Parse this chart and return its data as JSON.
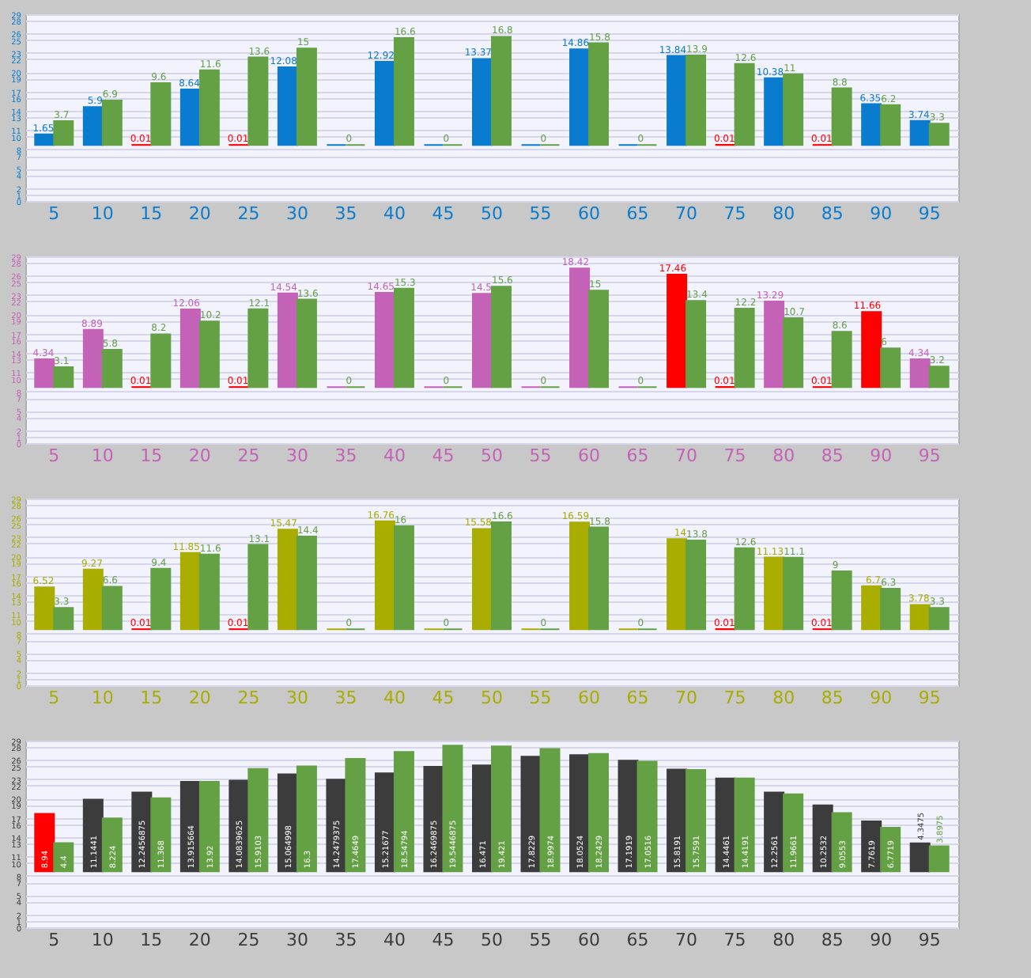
{
  "chart_data": [
    {
      "type": "bar",
      "categories": [
        "5",
        "10",
        "15",
        "20",
        "25",
        "30",
        "35",
        "40",
        "45",
        "50",
        "55",
        "60",
        "65",
        "70",
        "75",
        "80",
        "85",
        "90",
        "95"
      ],
      "grid": "y",
      "ylim": [
        0,
        29
      ],
      "yticks": [
        0,
        1,
        2,
        4,
        5,
        7,
        8,
        10,
        11,
        13,
        14,
        16,
        17,
        19,
        20,
        22,
        23,
        25,
        26,
        28,
        29
      ],
      "series": [
        {
          "color": "#0a7ccf",
          "base": [
            8.7,
            8.7,
            8.7,
            8.7,
            8.7,
            8.7,
            8.7,
            8.7,
            8.7,
            8.7,
            8.7,
            8.7,
            8.7,
            8.7,
            8.7,
            8.7,
            8.7,
            8.7,
            8.7
          ],
          "values": [
            1.65,
            5.9,
            0.01,
            8.64,
            0.01,
            12.08,
            0,
            12.92,
            0,
            13.37,
            0,
            14.86,
            0,
            13.84,
            0.01,
            10.38,
            0.01,
            6.35,
            3.74
          ],
          "colors": [
            "#0a7ccf",
            "#0a7ccf",
            "#ff0000",
            "#0a7ccf",
            "#ff0000",
            "#0a7ccf",
            "#0a7ccf",
            "#0a7ccf",
            "#0a7ccf",
            "#0a7ccf",
            "#0a7ccf",
            "#0a7ccf",
            "#0a7ccf",
            "#0a7ccf",
            "#ff0000",
            "#0a7ccf",
            "#ff0000",
            "#0a7ccf",
            "#0a7ccf"
          ],
          "value_labels": [
            "1.65",
            "5.9",
            "0.01",
            "8.64",
            "0.01",
            "12.08",
            null,
            "12.92",
            null,
            "13.37",
            null,
            "14.86",
            null,
            "13.84",
            "0.01",
            "10.38",
            "0.01",
            "6.35",
            "3.74"
          ]
        },
        {
          "color": "#64a044",
          "base": [
            8.7,
            8.7,
            8.7,
            8.7,
            8.7,
            8.7,
            8.7,
            8.7,
            8.7,
            8.7,
            8.7,
            8.7,
            8.7,
            8.7,
            8.7,
            8.7,
            8.7,
            8.7,
            8.7
          ],
          "values": [
            3.7,
            6.9,
            9.6,
            11.6,
            13.6,
            15,
            0,
            16.6,
            0,
            16.8,
            0,
            15.8,
            0,
            13.9,
            12.6,
            11,
            8.8,
            6.2,
            3.3
          ],
          "value_labels": [
            "3.7",
            "6.9",
            "9.6",
            "11.6",
            "13.6",
            "15",
            "0",
            "16.6",
            "0",
            "16.8",
            "0",
            "15.8",
            "0",
            "13.9",
            "12.6",
            "11",
            "8.8",
            "6.2",
            "3.3"
          ]
        }
      ]
    },
    {
      "type": "bar",
      "categories": [
        "5",
        "10",
        "15",
        "20",
        "25",
        "30",
        "35",
        "40",
        "45",
        "50",
        "55",
        "60",
        "65",
        "70",
        "75",
        "80",
        "85",
        "90",
        "95"
      ],
      "grid": "y",
      "ylim": [
        0,
        29
      ],
      "yticks": [
        0,
        1,
        2,
        4,
        5,
        7,
        8,
        10,
        11,
        13,
        14,
        16,
        17,
        19,
        20,
        22,
        23,
        25,
        26,
        28,
        29
      ],
      "series": [
        {
          "color": "#c462b8",
          "base": [
            8.7,
            8.7,
            8.7,
            8.7,
            8.7,
            8.7,
            8.7,
            8.7,
            8.7,
            8.7,
            8.7,
            8.7,
            8.7,
            8.7,
            8.7,
            8.7,
            8.7,
            8.7,
            8.7
          ],
          "values": [
            4.34,
            8.89,
            0.01,
            12.06,
            0.01,
            14.54,
            0,
            14.65,
            0,
            14.5,
            0,
            18.42,
            0,
            17.46,
            0.01,
            13.29,
            0.01,
            11.66,
            4.34
          ],
          "colors": [
            "#c462b8",
            "#c462b8",
            "#ff0000",
            "#c462b8",
            "#ff0000",
            "#c462b8",
            "#c462b8",
            "#c462b8",
            "#c462b8",
            "#c462b8",
            "#c462b8",
            "#c462b8",
            "#c462b8",
            "#ff0000",
            "#ff0000",
            "#c462b8",
            "#ff0000",
            "#ff0000",
            "#c462b8"
          ],
          "value_labels": [
            "4.34",
            "8.89",
            "0.01",
            "12.06",
            "0.01",
            "14.54",
            null,
            "14.65",
            null,
            "14.5",
            null,
            "18.42",
            null,
            "17.46",
            "0.01",
            "13.29",
            "0.01",
            "11.66",
            "4.34"
          ]
        },
        {
          "color": "#64a044",
          "base": [
            8.7,
            8.7,
            8.7,
            8.7,
            8.7,
            8.7,
            8.7,
            8.7,
            8.7,
            8.7,
            8.7,
            8.7,
            8.7,
            8.7,
            8.7,
            8.7,
            8.7,
            8.7,
            8.7
          ],
          "values": [
            3.1,
            5.8,
            8.2,
            10.2,
            12.1,
            13.6,
            0,
            15.3,
            0,
            15.6,
            0,
            15,
            0,
            13.4,
            12.2,
            10.7,
            8.6,
            6,
            3.2
          ],
          "value_labels": [
            "3.1",
            "5.8",
            "8.2",
            "10.2",
            "12.1",
            "13.6",
            "0",
            "15.3",
            "0",
            "15.6",
            "0",
            "15",
            "0",
            "13.4",
            "12.2",
            "10.7",
            "8.6",
            "6",
            "3.2"
          ]
        }
      ]
    },
    {
      "type": "bar",
      "categories": [
        "5",
        "10",
        "15",
        "20",
        "25",
        "30",
        "35",
        "40",
        "45",
        "50",
        "55",
        "60",
        "65",
        "70",
        "75",
        "80",
        "85",
        "90",
        "95"
      ],
      "grid": "y",
      "ylim": [
        0,
        29
      ],
      "yticks": [
        0,
        1,
        2,
        4,
        5,
        7,
        8,
        10,
        11,
        13,
        14,
        16,
        17,
        19,
        20,
        22,
        23,
        25,
        26,
        28,
        29
      ],
      "series": [
        {
          "color": "#a8ad00",
          "base": [
            8.7,
            8.7,
            8.7,
            8.7,
            8.7,
            8.7,
            8.7,
            8.7,
            8.7,
            8.7,
            8.7,
            8.7,
            8.7,
            8.7,
            8.7,
            8.7,
            8.7,
            8.7,
            8.7
          ],
          "values": [
            6.52,
            9.27,
            0.01,
            11.85,
            0.01,
            15.47,
            0,
            16.76,
            0,
            15.58,
            0,
            16.59,
            0,
            14,
            0.01,
            11.13,
            0.01,
            6.7,
            3.78
          ],
          "colors": [
            "#a8ad00",
            "#a8ad00",
            "#ff0000",
            "#a8ad00",
            "#ff0000",
            "#a8ad00",
            "#a8ad00",
            "#a8ad00",
            "#a8ad00",
            "#a8ad00",
            "#a8ad00",
            "#a8ad00",
            "#a8ad00",
            "#a8ad00",
            "#ff0000",
            "#a8ad00",
            "#ff0000",
            "#a8ad00",
            "#a8ad00"
          ],
          "value_labels": [
            "6.52",
            "9.27",
            "0.01",
            "11.85",
            "0.01",
            "15.47",
            null,
            "16.76",
            null,
            "15.58",
            null,
            "16.59",
            null,
            "14",
            "0.01",
            "11.13",
            "0.01",
            "6.7",
            "3.78"
          ]
        },
        {
          "color": "#64a044",
          "base": [
            8.7,
            8.7,
            8.7,
            8.7,
            8.7,
            8.7,
            8.7,
            8.7,
            8.7,
            8.7,
            8.7,
            8.7,
            8.7,
            8.7,
            8.7,
            8.7,
            8.7,
            8.7,
            8.7
          ],
          "values": [
            3.3,
            6.6,
            9.4,
            11.6,
            13.1,
            14.4,
            0,
            16,
            0,
            16.6,
            0,
            15.8,
            0,
            13.8,
            12.6,
            11.1,
            9,
            6.3,
            3.3
          ],
          "value_labels": [
            "3.3",
            "6.6",
            "9.4",
            "11.6",
            "13.1",
            "14.4",
            "0",
            "16",
            "0",
            "16.6",
            "0",
            "15.8",
            "0",
            "13.8",
            "12.6",
            "11.1",
            "9",
            "6.3",
            "3.3"
          ]
        }
      ]
    },
    {
      "type": "bar",
      "categories": [
        "5",
        "10",
        "15",
        "20",
        "25",
        "30",
        "35",
        "40",
        "45",
        "50",
        "55",
        "60",
        "65",
        "70",
        "75",
        "80",
        "85",
        "90",
        "95"
      ],
      "grid": "y",
      "ylim": [
        0,
        29
      ],
      "yticks": [
        0,
        1,
        2,
        4,
        5,
        7,
        8,
        10,
        11,
        13,
        14,
        16,
        17,
        19,
        20,
        22,
        23,
        25,
        26,
        28,
        29
      ],
      "series": [
        {
          "color": "#3c3c3c",
          "base": [
            8.7,
            8.7,
            8.7,
            8.7,
            8.7,
            8.7,
            8.7,
            8.7,
            8.7,
            8.7,
            8.7,
            8.7,
            8.7,
            8.7,
            8.7,
            8.7,
            8.7,
            8.7,
            8.7
          ],
          "values": [
            8.94,
            11.1441,
            12.2456875,
            13.915664,
            14.0839625,
            15.064998,
            14.2479375,
            15.21677,
            16.2469875,
            16.471,
            17.8229,
            18.0524,
            17.1919,
            15.8191,
            14.4461,
            12.2561,
            10.2532,
            7.7619,
            4.3475
          ],
          "colors": [
            "#ff0000",
            "#3c3c3c",
            "#3c3c3c",
            "#3c3c3c",
            "#3c3c3c",
            "#3c3c3c",
            "#3c3c3c",
            "#3c3c3c",
            "#3c3c3c",
            "#3c3c3c",
            "#3c3c3c",
            "#3c3c3c",
            "#3c3c3c",
            "#3c3c3c",
            "#3c3c3c",
            "#3c3c3c",
            "#3c3c3c",
            "#3c3c3c",
            "#3c3c3c"
          ],
          "value_labels": [
            "8.94",
            "11.1441",
            "12.2456875",
            "13.915664",
            "14.0839625",
            "15.064998",
            "14.2479375",
            "15.21677",
            "16.2469875",
            "16.471",
            "17.8229",
            "18.0524",
            "17.1919",
            "15.8191",
            "14.4461",
            "12.2561",
            "10.2532",
            "7.7619",
            "4.3475"
          ]
        },
        {
          "color": "#64a044",
          "base": [
            8.7,
            8.7,
            8.7,
            8.7,
            8.7,
            8.7,
            8.7,
            8.7,
            8.7,
            8.7,
            8.7,
            8.7,
            8.7,
            8.7,
            8.7,
            8.7,
            8.7,
            8.7,
            8.7
          ],
          "values": [
            4.4,
            8.224,
            11.368,
            13.92,
            15.9103,
            16.3,
            17.4649,
            18.54794,
            19.5446875,
            19.421,
            18.9974,
            18.2429,
            17.0516,
            15.7591,
            14.4191,
            11.9661,
            9.0553,
            6.7719,
            3.8975
          ],
          "value_labels": [
            "4.4",
            "8.224",
            "11.368",
            "13.92",
            "15.9103",
            "16.3",
            "17.4649",
            "18.54794",
            "19.5446875",
            "19.421",
            "18.9974",
            "18.2429",
            "17.0516",
            "15.7591",
            "14.4191",
            "11.9661",
            "9.0553",
            "6.7719",
            "3.8975"
          ]
        }
      ]
    }
  ]
}
